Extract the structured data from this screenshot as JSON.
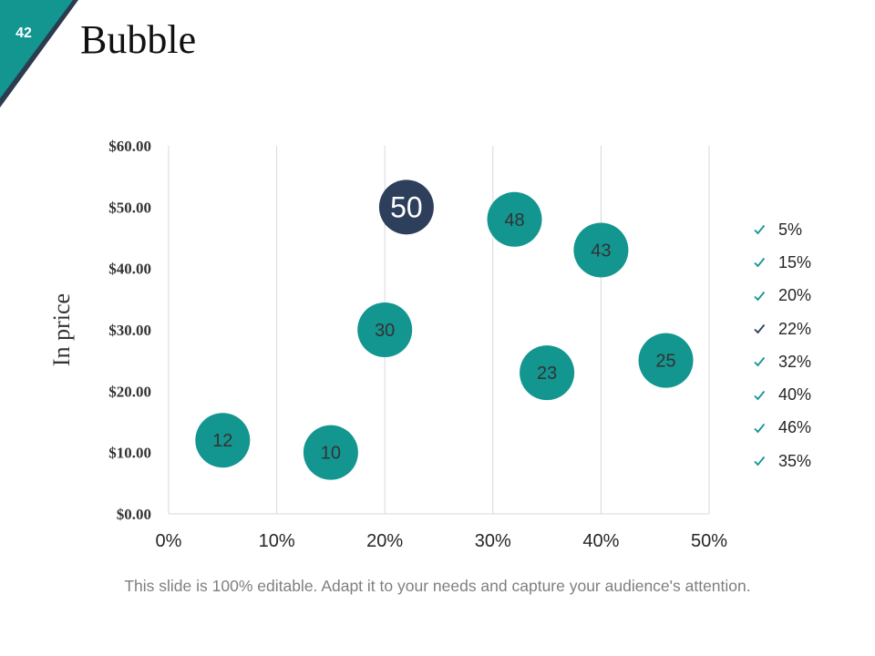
{
  "slide": {
    "page_number": "42",
    "title": "Bubble",
    "footer": "This slide is 100% editable. Adapt it to your needs and capture your audience's attention."
  },
  "colors": {
    "teal": "#139590",
    "navy": "#2e3f5c",
    "corner_dark": "#2d3b4f",
    "grid": "#d9d9d9"
  },
  "chart_data": {
    "type": "scatter",
    "ylabel": "In price",
    "xlabel": "",
    "xlim": [
      0,
      50
    ],
    "ylim": [
      0,
      60
    ],
    "x_ticks": [
      "0%",
      "10%",
      "20%",
      "30%",
      "40%",
      "50%"
    ],
    "y_ticks": [
      "$0.00",
      "$10.00",
      "$20.00",
      "$30.00",
      "$40.00",
      "$50.00",
      "$60.00"
    ],
    "grid": "vertical",
    "legend_position": "right",
    "points": [
      {
        "x": 5,
        "y": 12,
        "label": "12",
        "color": "#139590"
      },
      {
        "x": 15,
        "y": 10,
        "label": "10",
        "color": "#139590"
      },
      {
        "x": 20,
        "y": 30,
        "label": "30",
        "color": "#139590"
      },
      {
        "x": 22,
        "y": 50,
        "label": "50",
        "color": "#2e3f5c"
      },
      {
        "x": 32,
        "y": 48,
        "label": "48",
        "color": "#139590"
      },
      {
        "x": 40,
        "y": 43,
        "label": "43",
        "color": "#139590"
      },
      {
        "x": 46,
        "y": 25,
        "label": "25",
        "color": "#139590"
      },
      {
        "x": 35,
        "y": 23,
        "label": "23",
        "color": "#139590"
      }
    ],
    "legend": [
      {
        "label": "5%",
        "color": "#139590"
      },
      {
        "label": "15%",
        "color": "#139590"
      },
      {
        "label": "20%",
        "color": "#139590"
      },
      {
        "label": "22%",
        "color": "#2e3f5c"
      },
      {
        "label": "32%",
        "color": "#139590"
      },
      {
        "label": "40%",
        "color": "#139590"
      },
      {
        "label": "46%",
        "color": "#139590"
      },
      {
        "label": "35%",
        "color": "#139590"
      }
    ]
  }
}
